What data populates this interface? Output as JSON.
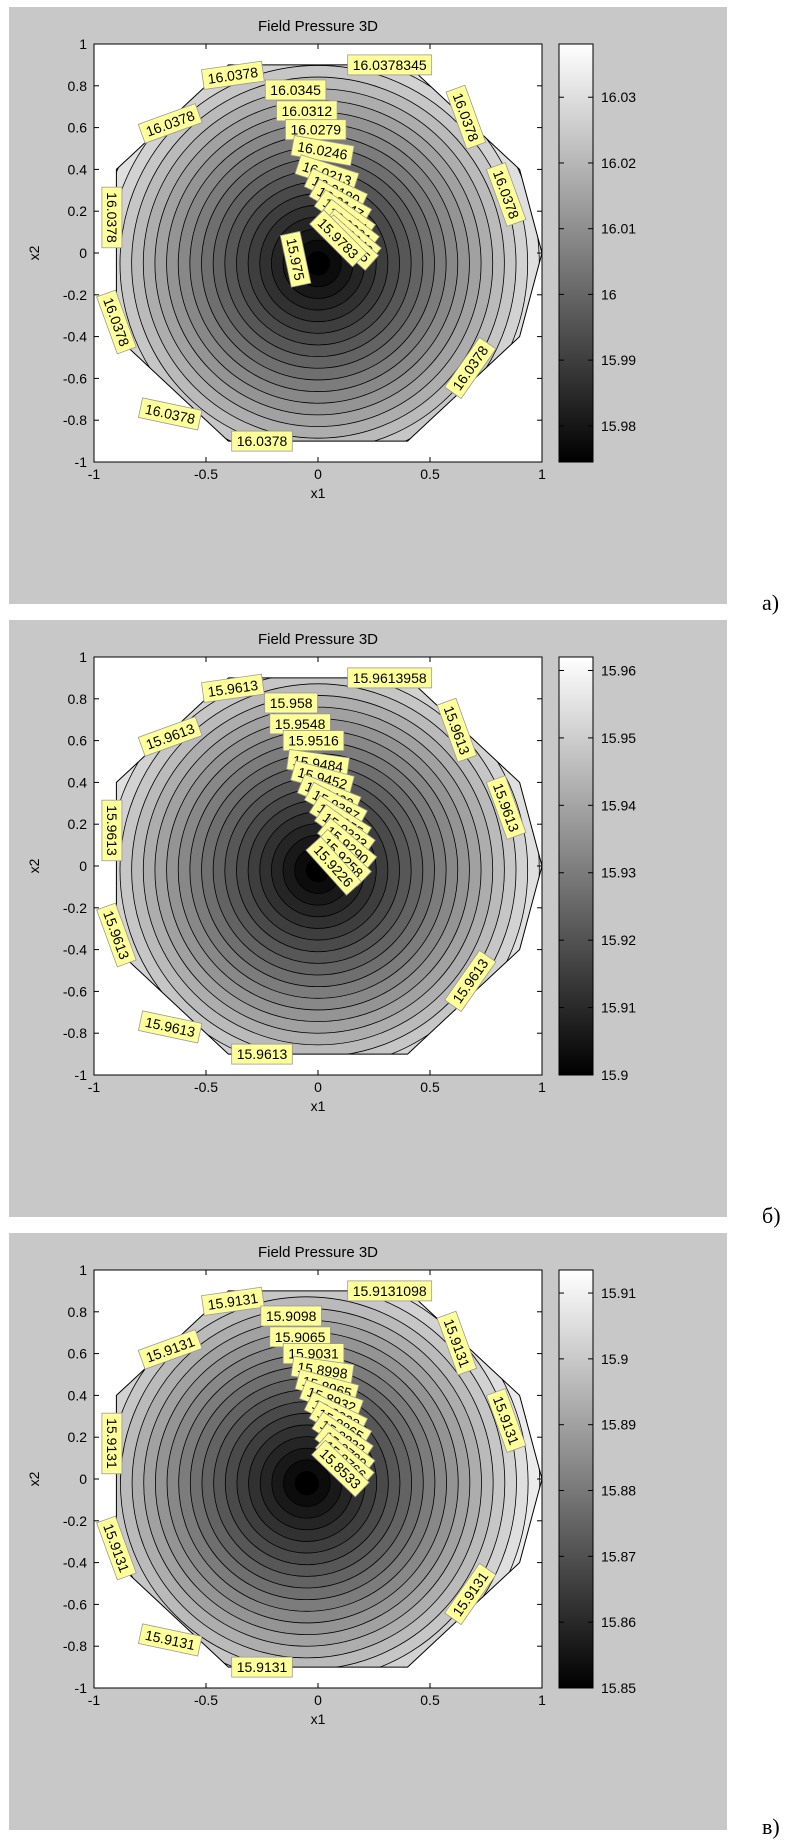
{
  "figures": [
    {
      "caption": "а)",
      "chart_data": {
        "type": "contour",
        "title": "Field Pressure 3D",
        "xlabel": "x1",
        "ylabel": "x2",
        "xlim": [
          -1,
          1
        ],
        "ylim": [
          -1,
          1
        ],
        "xticks": [
          "-1",
          "-0.5",
          "0",
          "0.5",
          "1"
        ],
        "yticks": [
          "1",
          "0.8",
          "0.6",
          "0.4",
          "0.2",
          "0",
          "-0.2",
          "-0.4",
          "-0.6",
          "-0.8",
          "-1"
        ],
        "colormap": "gray",
        "clim": [
          15.9745,
          16.0381
        ],
        "colorbar_ticks": [
          "16.03",
          "16.02",
          "16.01",
          "16",
          "15.99",
          "15.98"
        ],
        "center": [
          0,
          -0.05
        ],
        "contour_levels": 20,
        "labels": [
          {
            "text": "16.0378",
            "x": -0.38,
            "y": 0.85,
            "rot": -8
          },
          {
            "text": "16.0345",
            "x": -0.1,
            "y": 0.78,
            "rot": 0
          },
          {
            "text": "16.0378345",
            "x": 0.32,
            "y": 0.9,
            "rot": 0
          },
          {
            "text": "16.0312",
            "x": -0.05,
            "y": 0.68,
            "rot": 0
          },
          {
            "text": "16.0279",
            "x": -0.01,
            "y": 0.59,
            "rot": 0
          },
          {
            "text": "16.0378",
            "x": -0.66,
            "y": 0.62,
            "rot": -20
          },
          {
            "text": "16.0246",
            "x": 0.02,
            "y": 0.49,
            "rot": 10
          },
          {
            "text": "16.0378",
            "x": 0.66,
            "y": 0.65,
            "rot": 70
          },
          {
            "text": "16.0213",
            "x": 0.04,
            "y": 0.38,
            "rot": 18
          },
          {
            "text": "16.0378",
            "x": 0.84,
            "y": 0.28,
            "rot": 70
          },
          {
            "text": "16.0180",
            "x": 0.08,
            "y": 0.3,
            "rot": 25
          },
          {
            "text": "16.0147",
            "x": 0.1,
            "y": 0.24,
            "rot": 30
          },
          {
            "text": "16.0378",
            "x": -0.92,
            "y": 0.17,
            "rot": 90
          },
          {
            "text": "16.0114",
            "x": 0.12,
            "y": 0.18,
            "rot": 35
          },
          {
            "text": "16.0081",
            "x": 0.14,
            "y": 0.13,
            "rot": 38
          },
          {
            "text": "16.0048",
            "x": 0.15,
            "y": 0.08,
            "rot": 40
          },
          {
            "text": "16.0015",
            "x": 0.14,
            "y": 0.05,
            "rot": 42
          },
          {
            "text": "15.9783",
            "x": 0.09,
            "y": 0.07,
            "rot": 45
          },
          {
            "text": "15.975",
            "x": -0.1,
            "y": -0.03,
            "rot": 78
          },
          {
            "text": "16.0378",
            "x": -0.9,
            "y": -0.33,
            "rot": 70
          },
          {
            "text": "16.0378",
            "x": 0.68,
            "y": -0.55,
            "rot": -55
          },
          {
            "text": "16.0378",
            "x": -0.66,
            "y": -0.77,
            "rot": 12
          },
          {
            "text": "16.0378",
            "x": -0.25,
            "y": -0.9,
            "rot": 0
          }
        ]
      }
    },
    {
      "caption": "б)",
      "chart_data": {
        "type": "contour",
        "title": "Field Pressure 3D",
        "xlabel": "x1",
        "ylabel": "x2",
        "xlim": [
          -1,
          1
        ],
        "ylim": [
          -1,
          1
        ],
        "xticks": [
          "-1",
          "-0.5",
          "0",
          "0.5",
          "1"
        ],
        "yticks": [
          "1",
          "0.8",
          "0.6",
          "0.4",
          "0.2",
          "0",
          "-0.2",
          "-0.4",
          "-0.6",
          "-0.8",
          "-1"
        ],
        "colormap": "gray",
        "clim": [
          15.9,
          15.962
        ],
        "colorbar_ticks": [
          "15.96",
          "15.95",
          "15.94",
          "15.93",
          "15.92",
          "15.91",
          "15.9"
        ],
        "center": [
          0,
          -0.02
        ],
        "contour_levels": 20,
        "labels": [
          {
            "text": "15.9613",
            "x": -0.38,
            "y": 0.85,
            "rot": -8
          },
          {
            "text": "15.958",
            "x": -0.12,
            "y": 0.78,
            "rot": 0
          },
          {
            "text": "15.9613958",
            "x": 0.32,
            "y": 0.9,
            "rot": 0
          },
          {
            "text": "15.9548",
            "x": -0.08,
            "y": 0.68,
            "rot": 0
          },
          {
            "text": "15.9516",
            "x": -0.02,
            "y": 0.6,
            "rot": 0
          },
          {
            "text": "15.9613",
            "x": -0.66,
            "y": 0.62,
            "rot": -20
          },
          {
            "text": "15.9484",
            "x": 0.0,
            "y": 0.49,
            "rot": 8
          },
          {
            "text": "15.9613",
            "x": 0.62,
            "y": 0.65,
            "rot": 70
          },
          {
            "text": "15.9452",
            "x": 0.02,
            "y": 0.42,
            "rot": 15
          },
          {
            "text": "15.9613",
            "x": 0.84,
            "y": 0.28,
            "rot": 70
          },
          {
            "text": "15.9420",
            "x": 0.05,
            "y": 0.34,
            "rot": 22
          },
          {
            "text": "15.9387",
            "x": 0.08,
            "y": 0.29,
            "rot": 28
          },
          {
            "text": "15.9613",
            "x": -0.92,
            "y": 0.17,
            "rot": 90
          },
          {
            "text": "15.9355",
            "x": 0.1,
            "y": 0.22,
            "rot": 32
          },
          {
            "text": "15.9323",
            "x": 0.12,
            "y": 0.17,
            "rot": 36
          },
          {
            "text": "15.9290",
            "x": 0.13,
            "y": 0.1,
            "rot": 40
          },
          {
            "text": "15.9258",
            "x": 0.11,
            "y": 0.04,
            "rot": 44
          },
          {
            "text": "15.9226",
            "x": 0.07,
            "y": 0.0,
            "rot": 48
          },
          {
            "text": "15.9613",
            "x": -0.9,
            "y": -0.33,
            "rot": 70
          },
          {
            "text": "15.9613",
            "x": 0.68,
            "y": -0.55,
            "rot": -55
          },
          {
            "text": "15.9613",
            "x": -0.66,
            "y": -0.77,
            "rot": 12
          },
          {
            "text": "15.9613",
            "x": -0.25,
            "y": -0.9,
            "rot": 0
          }
        ]
      }
    },
    {
      "caption": "в)",
      "chart_data": {
        "type": "contour",
        "title": "Field Pressure 3D",
        "xlabel": "x1",
        "ylabel": "x2",
        "xlim": [
          -1,
          1
        ],
        "ylim": [
          -1,
          1
        ],
        "xticks": [
          "-1",
          "-0.5",
          "0",
          "0.5",
          "1"
        ],
        "yticks": [
          "1",
          "0.8",
          "0.6",
          "0.4",
          "0.2",
          "0",
          "-0.2",
          "-0.4",
          "-0.6",
          "-0.8",
          "-1"
        ],
        "colormap": "gray",
        "clim": [
          15.85,
          15.9135
        ],
        "colorbar_ticks": [
          "15.91",
          "15.9",
          "15.89",
          "15.88",
          "15.87",
          "15.86",
          "15.85"
        ],
        "center": [
          -0.05,
          -0.02
        ],
        "contour_levels": 20,
        "labels": [
          {
            "text": "15.9131",
            "x": -0.38,
            "y": 0.85,
            "rot": -8
          },
          {
            "text": "15.9098",
            "x": -0.12,
            "y": 0.78,
            "rot": 0
          },
          {
            "text": "15.9131098",
            "x": 0.32,
            "y": 0.9,
            "rot": 0
          },
          {
            "text": "15.9065",
            "x": -0.08,
            "y": 0.68,
            "rot": 0
          },
          {
            "text": "15.9031",
            "x": -0.02,
            "y": 0.6,
            "rot": 0
          },
          {
            "text": "15.9131",
            "x": -0.66,
            "y": 0.62,
            "rot": -20
          },
          {
            "text": "15.8998",
            "x": 0.02,
            "y": 0.52,
            "rot": 8
          },
          {
            "text": "15.9131",
            "x": 0.62,
            "y": 0.65,
            "rot": 70
          },
          {
            "text": "15.8965",
            "x": 0.04,
            "y": 0.44,
            "rot": 15
          },
          {
            "text": "15.9131",
            "x": 0.84,
            "y": 0.28,
            "rot": 70
          },
          {
            "text": "15.8932",
            "x": 0.06,
            "y": 0.38,
            "rot": 20
          },
          {
            "text": "15.8898",
            "x": 0.08,
            "y": 0.31,
            "rot": 26
          },
          {
            "text": "15.9131",
            "x": -0.92,
            "y": 0.17,
            "rot": 90
          },
          {
            "text": "15.8865",
            "x": 0.1,
            "y": 0.26,
            "rot": 30
          },
          {
            "text": "15.8832",
            "x": 0.11,
            "y": 0.2,
            "rot": 34
          },
          {
            "text": "15.8799",
            "x": 0.12,
            "y": 0.14,
            "rot": 38
          },
          {
            "text": "15.8766",
            "x": 0.12,
            "y": 0.09,
            "rot": 41
          },
          {
            "text": "15.8533",
            "x": 0.1,
            "y": 0.05,
            "rot": 44
          },
          {
            "text": "15.9131",
            "x": -0.9,
            "y": -0.33,
            "rot": 70
          },
          {
            "text": "15.9131",
            "x": 0.68,
            "y": -0.55,
            "rot": -55
          },
          {
            "text": "15.9131",
            "x": -0.66,
            "y": -0.77,
            "rot": 12
          },
          {
            "text": "15.9131",
            "x": -0.25,
            "y": -0.9,
            "rot": 0
          }
        ]
      }
    }
  ]
}
